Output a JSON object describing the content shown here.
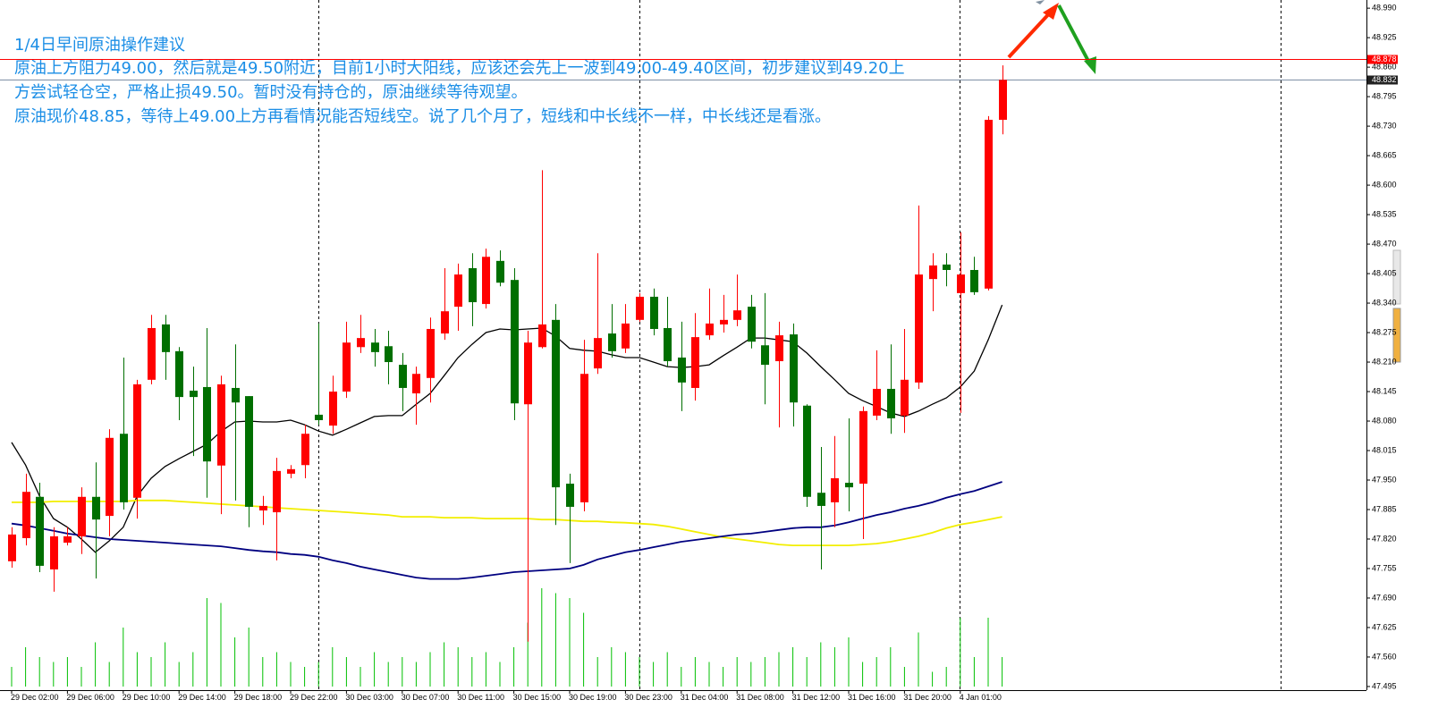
{
  "chart_data": {
    "type": "candlestick",
    "annotation_title": "1/4日早间原油操作建议",
    "annotation_lines": [
      "原油上方阻力49.00，然后就是49.50附近，目前1小时大阳线，应该还会先上一波到49.00-49.40区间，初步建议到49.20上",
      "方尝试轻仓空，严格止损49.50。暂时没有持仓的，原油继续等待观望。",
      "原油现价48.85，等待上49.00上方再看情况能否短线空。说了几个月了，短线和中长线不一样，中长线还是看涨。"
    ],
    "categories": [
      "29 Dec 02:00",
      null,
      null,
      null,
      "29 Dec 06:00",
      null,
      null,
      null,
      "29 Dec 10:00",
      null,
      null,
      null,
      "29 Dec 14:00",
      null,
      null,
      null,
      "29 Dec 18:00",
      null,
      null,
      null,
      "29 Dec 22:00",
      null,
      null,
      null,
      "30 Dec 03:00",
      null,
      null,
      null,
      "30 Dec 07:00",
      null,
      null,
      null,
      "30 Dec 11:00",
      null,
      null,
      null,
      "30 Dec 15:00",
      null,
      null,
      null,
      "30 Dec 19:00",
      null,
      null,
      null,
      "30 Dec 23:00",
      null,
      null,
      null,
      "31 Dec 04:00",
      null,
      null,
      null,
      "31 Dec 08:00",
      null,
      null,
      null,
      "31 Dec 12:00",
      null,
      null,
      null,
      "31 Dec 16:00",
      null,
      null,
      null,
      "31 Dec 20:00",
      null,
      null,
      null,
      "4 Jan 01:00",
      null,
      null,
      null
    ],
    "open": [
      47.771,
      47.822,
      47.913,
      47.753,
      47.812,
      47.826,
      47.913,
      47.871,
      48.052,
      47.911,
      48.171,
      48.293,
      48.234,
      48.147,
      48.155,
      47.982,
      48.153,
      48.135,
      47.883,
      47.879,
      47.964,
      47.983,
      48.094,
      48.07,
      48.145,
      48.243,
      48.253,
      48.245,
      48.204,
      48.141,
      48.175,
      48.273,
      48.332,
      48.417,
      48.338,
      48.433,
      48.391,
      48.117,
      48.243,
      48.303,
      47.942,
      47.901,
      48.196,
      48.273,
      48.24,
      48.303,
      48.354,
      48.285,
      48.22,
      48.153,
      48.269,
      48.293,
      48.303,
      48.332,
      48.247,
      48.212,
      48.271,
      48.114,
      47.922,
      47.901,
      47.944,
      47.942,
      48.092,
      48.151,
      48.092,
      48.165,
      48.393,
      48.425,
      48.362,
      48.413,
      48.372,
      48.744
    ],
    "high": [
      47.846,
      47.964,
      47.944,
      47.846,
      47.846,
      47.934,
      47.989,
      48.062,
      48.22,
      48.171,
      48.314,
      48.314,
      48.243,
      48.2,
      48.285,
      48.18,
      48.249,
      48.135,
      47.915,
      47.999,
      47.983,
      48.072,
      48.295,
      48.18,
      48.299,
      48.314,
      48.283,
      48.279,
      48.23,
      48.2,
      48.308,
      48.417,
      48.427,
      48.45,
      48.46,
      48.456,
      48.417,
      48.279,
      48.633,
      48.338,
      47.964,
      48.259,
      48.45,
      48.338,
      48.338,
      48.362,
      48.372,
      48.354,
      48.299,
      48.318,
      48.372,
      48.358,
      48.403,
      48.358,
      48.362,
      48.299,
      48.295,
      48.117,
      48.023,
      48.047,
      48.086,
      48.112,
      48.236,
      48.249,
      48.283,
      48.555,
      48.45,
      48.45,
      48.496,
      48.442,
      48.752,
      48.864
    ],
    "low": [
      47.757,
      47.806,
      47.747,
      47.704,
      47.806,
      47.787,
      47.733,
      47.826,
      47.885,
      47.865,
      48.161,
      48.171,
      48.082,
      48.003,
      47.911,
      47.875,
      47.905,
      47.846,
      47.851,
      47.773,
      47.954,
      47.954,
      48.072,
      48.052,
      48.131,
      48.23,
      48.2,
      48.161,
      48.102,
      48.072,
      48.121,
      48.259,
      48.279,
      48.289,
      48.328,
      48.377,
      48.082,
      47.594,
      48.24,
      47.851,
      47.767,
      47.881,
      48.184,
      48.22,
      48.23,
      48.299,
      48.269,
      48.2,
      48.102,
      48.125,
      48.259,
      48.275,
      48.289,
      48.24,
      48.117,
      48.066,
      48.068,
      47.891,
      47.753,
      47.846,
      47.881,
      47.82,
      48.082,
      48.052,
      48.054,
      48.151,
      48.322,
      48.377,
      48.098,
      48.358,
      48.368,
      48.712
    ],
    "close": [
      47.83,
      47.924,
      47.761,
      47.826,
      47.826,
      47.913,
      47.863,
      48.043,
      47.901,
      48.161,
      48.285,
      48.232,
      48.133,
      48.133,
      47.991,
      48.161,
      48.121,
      47.891,
      47.893,
      47.97,
      47.974,
      48.052,
      48.082,
      48.145,
      48.253,
      48.263,
      48.232,
      48.21,
      48.153,
      48.184,
      48.283,
      48.322,
      48.403,
      48.342,
      48.442,
      48.385,
      48.119,
      48.253,
      48.293,
      47.934,
      47.891,
      48.184,
      48.263,
      48.234,
      48.295,
      48.354,
      48.283,
      48.212,
      48.165,
      48.265,
      48.295,
      48.303,
      48.324,
      48.255,
      48.204,
      48.269,
      48.121,
      47.913,
      47.893,
      47.954,
      47.934,
      48.102,
      48.151,
      48.086,
      48.171,
      48.403,
      48.423,
      48.413,
      48.403,
      48.364,
      48.744,
      48.832
    ],
    "up_color": "#ff0000",
    "down_color": "#006f00",
    "series": [
      {
        "color": "#000000",
        "values": [
          48.033,
          47.983,
          47.915,
          47.865,
          47.846,
          47.82,
          47.791,
          47.816,
          47.846,
          47.915,
          47.954,
          47.98,
          47.997,
          48.013,
          48.029,
          48.057,
          48.078,
          48.08,
          48.078,
          48.078,
          48.082,
          48.072,
          48.058,
          48.049,
          48.062,
          48.076,
          48.09,
          48.092,
          48.092,
          48.117,
          48.141,
          48.18,
          48.22,
          48.249,
          48.275,
          48.283,
          48.281,
          48.283,
          48.285,
          48.267,
          48.24,
          48.236,
          48.234,
          48.226,
          48.22,
          48.22,
          48.21,
          48.2,
          48.198,
          48.2,
          48.204,
          48.224,
          48.243,
          48.263,
          48.263,
          48.259,
          48.255,
          48.23,
          48.2,
          48.171,
          48.141,
          48.125,
          48.112,
          48.098,
          48.09,
          48.102,
          48.117,
          48.131,
          48.155,
          48.19,
          48.259,
          48.336
        ]
      },
      {
        "color": "#f2ee00",
        "values": [
          47.901,
          47.901,
          47.901,
          47.903,
          47.903,
          47.903,
          47.903,
          47.903,
          47.903,
          47.905,
          47.905,
          47.905,
          47.903,
          47.901,
          47.899,
          47.897,
          47.895,
          47.893,
          47.891,
          47.889,
          47.887,
          47.885,
          47.883,
          47.881,
          47.879,
          47.877,
          47.875,
          47.873,
          47.869,
          47.869,
          47.869,
          47.867,
          47.867,
          47.867,
          47.865,
          47.865,
          47.865,
          47.865,
          47.863,
          47.863,
          47.861,
          47.859,
          47.859,
          47.857,
          47.856,
          47.854,
          47.852,
          47.848,
          47.842,
          47.836,
          47.83,
          47.824,
          47.82,
          47.816,
          47.812,
          47.808,
          47.806,
          47.806,
          47.806,
          47.806,
          47.806,
          47.808,
          47.81,
          47.814,
          47.82,
          47.826,
          47.834,
          47.844,
          47.852,
          47.857,
          47.863,
          47.869
        ]
      },
      {
        "color": "#000080",
        "values": [
          47.854,
          47.85,
          47.844,
          47.838,
          47.832,
          47.828,
          47.824,
          47.82,
          47.818,
          47.816,
          47.814,
          47.812,
          47.81,
          47.808,
          47.806,
          47.804,
          47.8,
          47.796,
          47.793,
          47.791,
          47.787,
          47.785,
          47.781,
          47.773,
          47.767,
          47.759,
          47.753,
          47.747,
          47.741,
          47.735,
          47.732,
          47.732,
          47.732,
          47.735,
          47.739,
          47.743,
          47.747,
          47.749,
          47.751,
          47.753,
          47.755,
          47.763,
          47.775,
          47.783,
          47.791,
          47.796,
          47.802,
          47.808,
          47.814,
          47.818,
          47.822,
          47.826,
          47.83,
          47.832,
          47.836,
          47.84,
          47.844,
          47.846,
          47.846,
          47.85,
          47.857,
          47.865,
          47.873,
          47.879,
          47.887,
          47.893,
          47.901,
          47.911,
          47.919,
          47.926,
          47.936,
          47.946
        ]
      }
    ],
    "volume": [
      20,
      40,
      30,
      25,
      30,
      20,
      45,
      25,
      60,
      35,
      30,
      45,
      25,
      35,
      90,
      85,
      50,
      60,
      30,
      35,
      25,
      20,
      25,
      40,
      30,
      20,
      35,
      25,
      30,
      25,
      35,
      45,
      40,
      30,
      35,
      25,
      40,
      65,
      100,
      95,
      90,
      75,
      30,
      40,
      35,
      30,
      25,
      35,
      20,
      30,
      25,
      20,
      30,
      25,
      30,
      35,
      40,
      30,
      45,
      40,
      50,
      25,
      30,
      40,
      20,
      55,
      15,
      20,
      70,
      30,
      70,
      30
    ],
    "volume_color": "#00c000",
    "price_lines": [
      {
        "value": 48.878,
        "color": "#ff0000"
      },
      {
        "value": 48.832,
        "color": "#7f8fa6"
      }
    ],
    "ylim": [
      47.487,
      49.008
    ],
    "yticks": [
      {
        "value": 48.99,
        "label": "48.990"
      },
      48.925,
      {
        "value": 48.86,
        "label": "48.860"
      },
      48.795,
      {
        "value": 48.73,
        "label": "48.730"
      },
      48.665,
      {
        "value": 48.6,
        "label": "48.600"
      },
      48.535,
      {
        "value": 48.47,
        "label": "48.470"
      },
      48.405,
      {
        "value": 48.34,
        "label": "48.340"
      },
      48.275,
      {
        "value": 48.21,
        "label": "48.210"
      },
      48.145,
      {
        "value": 48.08,
        "label": "48.080"
      },
      48.015,
      {
        "value": 47.95,
        "label": "47.950"
      },
      47.885,
      {
        "value": 47.82,
        "label": "47.820"
      },
      47.755,
      {
        "value": 47.69,
        "label": "47.690"
      },
      47.625,
      {
        "value": 47.56,
        "label": "47.560"
      },
      47.495
    ],
    "grid": false
  }
}
